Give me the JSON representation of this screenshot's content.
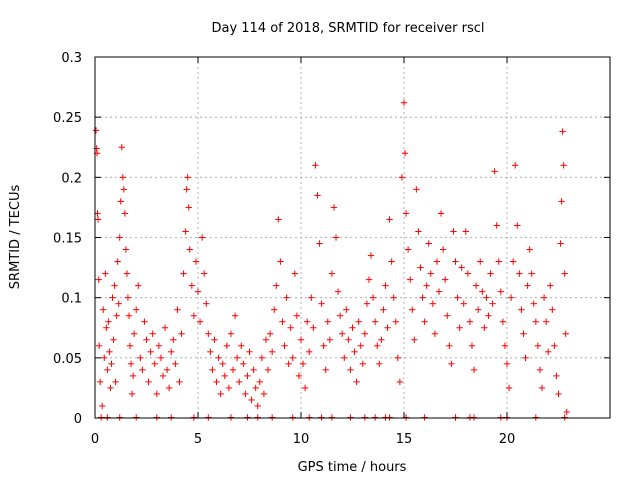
{
  "chart_data": {
    "type": "scatter",
    "title": "Day 114 of 2018, SRMTID for receiver rscl",
    "xlabel": "GPS time / hours",
    "ylabel": "SRMTID / TECUs",
    "xlim": [
      0,
      25
    ],
    "ylim": [
      0,
      0.3
    ],
    "grid": true,
    "marker_color": "#ff0000",
    "marker": "+",
    "x_ticks": [
      {
        "value": 0,
        "label": "0"
      },
      {
        "value": 5,
        "label": "5"
      },
      {
        "value": 10,
        "label": "10"
      },
      {
        "value": 15,
        "label": "15"
      },
      {
        "value": 20,
        "label": "20"
      }
    ],
    "y_ticks": [
      {
        "value": 0,
        "label": "0"
      },
      {
        "value": 0.05,
        "label": "0.05"
      },
      {
        "value": 0.1,
        "label": "0.1"
      },
      {
        "value": 0.15,
        "label": "0.15"
      },
      {
        "value": 0.2,
        "label": "0.2"
      },
      {
        "value": 0.25,
        "label": "0.25"
      },
      {
        "value": 0.3,
        "label": "0.3"
      }
    ],
    "series": [
      {
        "name": "SRMTID",
        "points": [
          [
            0.05,
            0.239
          ],
          [
            0.08,
            0.224
          ],
          [
            0.1,
            0.22
          ],
          [
            0.12,
            0.17
          ],
          [
            0.15,
            0.165
          ],
          [
            0.18,
            0.115
          ],
          [
            0.2,
            0.06
          ],
          [
            0.25,
            0.03
          ],
          [
            0.3,
            0.0
          ],
          [
            0.35,
            0.01
          ],
          [
            0.4,
            0.09
          ],
          [
            0.45,
            0.05
          ],
          [
            0.5,
            0.12
          ],
          [
            0.55,
            0.075
          ],
          [
            0.6,
            0.04
          ],
          [
            0.65,
            0.08
          ],
          [
            0.7,
            0.055
          ],
          [
            0.75,
            0.025
          ],
          [
            0.8,
            0.045
          ],
          [
            0.85,
            0.1
          ],
          [
            0.9,
            0.065
          ],
          [
            0.95,
            0.11
          ],
          [
            1.0,
            0.03
          ],
          [
            1.05,
            0.085
          ],
          [
            1.1,
            0.13
          ],
          [
            1.15,
            0.095
          ],
          [
            1.2,
            0.15
          ],
          [
            1.25,
            0.18
          ],
          [
            1.3,
            0.225
          ],
          [
            1.35,
            0.2
          ],
          [
            1.4,
            0.19
          ],
          [
            1.45,
            0.17
          ],
          [
            1.5,
            0.14
          ],
          [
            1.55,
            0.12
          ],
          [
            1.6,
            0.1
          ],
          [
            1.65,
            0.085
          ],
          [
            1.7,
            0.06
          ],
          [
            1.75,
            0.045
          ],
          [
            1.8,
            0.02
          ],
          [
            1.85,
            0.035
          ],
          [
            1.9,
            0.07
          ],
          [
            2.0,
            0.09
          ],
          [
            2.1,
            0.11
          ],
          [
            2.2,
            0.05
          ],
          [
            2.3,
            0.04
          ],
          [
            2.4,
            0.08
          ],
          [
            2.5,
            0.065
          ],
          [
            2.6,
            0.03
          ],
          [
            2.7,
            0.055
          ],
          [
            2.8,
            0.07
          ],
          [
            2.9,
            0.045
          ],
          [
            3.0,
            0.02
          ],
          [
            3.1,
            0.06
          ],
          [
            3.2,
            0.05
          ],
          [
            3.3,
            0.035
          ],
          [
            3.4,
            0.075
          ],
          [
            3.5,
            0.04
          ],
          [
            3.6,
            0.025
          ],
          [
            3.7,
            0.055
          ],
          [
            3.8,
            0.065
          ],
          [
            3.9,
            0.045
          ],
          [
            4.0,
            0.09
          ],
          [
            4.1,
            0.03
          ],
          [
            4.2,
            0.07
          ],
          [
            4.3,
            0.12
          ],
          [
            4.4,
            0.155
          ],
          [
            4.45,
            0.19
          ],
          [
            4.5,
            0.2
          ],
          [
            4.55,
            0.175
          ],
          [
            4.6,
            0.14
          ],
          [
            4.7,
            0.11
          ],
          [
            4.8,
            0.085
          ],
          [
            4.9,
            0.13
          ],
          [
            5.0,
            0.105
          ],
          [
            5.1,
            0.08
          ],
          [
            5.2,
            0.15
          ],
          [
            5.3,
            0.12
          ],
          [
            5.4,
            0.095
          ],
          [
            5.5,
            0.07
          ],
          [
            5.6,
            0.055
          ],
          [
            5.7,
            0.04
          ],
          [
            5.8,
            0.065
          ],
          [
            5.9,
            0.03
          ],
          [
            6.0,
            0.05
          ],
          [
            6.1,
            0.02
          ],
          [
            6.2,
            0.045
          ],
          [
            6.3,
            0.035
          ],
          [
            6.4,
            0.06
          ],
          [
            6.5,
            0.025
          ],
          [
            6.6,
            0.07
          ],
          [
            6.7,
            0.04
          ],
          [
            6.8,
            0.085
          ],
          [
            6.9,
            0.05
          ],
          [
            7.0,
            0.03
          ],
          [
            7.1,
            0.06
          ],
          [
            7.2,
            0.045
          ],
          [
            7.3,
            0.02
          ],
          [
            7.4,
            0.035
          ],
          [
            7.5,
            0.055
          ],
          [
            7.6,
            0.015
          ],
          [
            7.7,
            0.04
          ],
          [
            7.8,
            0.025
          ],
          [
            7.9,
            0.01
          ],
          [
            8.0,
            0.03
          ],
          [
            8.1,
            0.05
          ],
          [
            8.2,
            0.02
          ],
          [
            8.3,
            0.065
          ],
          [
            8.4,
            0.04
          ],
          [
            8.5,
            0.07
          ],
          [
            8.6,
            0.055
          ],
          [
            8.7,
            0.09
          ],
          [
            8.8,
            0.11
          ],
          [
            8.9,
            0.165
          ],
          [
            9.0,
            0.13
          ],
          [
            9.1,
            0.08
          ],
          [
            9.2,
            0.06
          ],
          [
            9.3,
            0.1
          ],
          [
            9.4,
            0.045
          ],
          [
            9.5,
            0.075
          ],
          [
            9.6,
            0.05
          ],
          [
            9.7,
            0.12
          ],
          [
            9.8,
            0.085
          ],
          [
            9.9,
            0.035
          ],
          [
            10.0,
            0.065
          ],
          [
            10.1,
            0.045
          ],
          [
            10.2,
            0.025
          ],
          [
            10.3,
            0.08
          ],
          [
            10.4,
            0.055
          ],
          [
            10.5,
            0.1
          ],
          [
            10.6,
            0.075
          ],
          [
            10.7,
            0.21
          ],
          [
            10.8,
            0.185
          ],
          [
            10.9,
            0.145
          ],
          [
            11.0,
            0.095
          ],
          [
            11.1,
            0.06
          ],
          [
            11.2,
            0.04
          ],
          [
            11.3,
            0.08
          ],
          [
            11.4,
            0.065
          ],
          [
            11.5,
            0.12
          ],
          [
            11.6,
            0.175
          ],
          [
            11.7,
            0.15
          ],
          [
            11.8,
            0.105
          ],
          [
            11.9,
            0.085
          ],
          [
            12.0,
            0.07
          ],
          [
            12.1,
            0.05
          ],
          [
            12.2,
            0.09
          ],
          [
            12.3,
            0.065
          ],
          [
            12.4,
            0.04
          ],
          [
            12.5,
            0.075
          ],
          [
            12.6,
            0.055
          ],
          [
            12.7,
            0.03
          ],
          [
            12.8,
            0.08
          ],
          [
            12.9,
            0.06
          ],
          [
            13.0,
            0.045
          ],
          [
            13.1,
            0.07
          ],
          [
            13.2,
            0.095
          ],
          [
            13.3,
            0.115
          ],
          [
            13.4,
            0.135
          ],
          [
            13.5,
            0.1
          ],
          [
            13.6,
            0.08
          ],
          [
            13.7,
            0.06
          ],
          [
            13.8,
            0.045
          ],
          [
            13.9,
            0.065
          ],
          [
            14.0,
            0.09
          ],
          [
            14.1,
            0.11
          ],
          [
            14.2,
            0.075
          ],
          [
            14.3,
            0.165
          ],
          [
            14.4,
            0.13
          ],
          [
            14.5,
            0.1
          ],
          [
            14.6,
            0.08
          ],
          [
            14.7,
            0.05
          ],
          [
            14.8,
            0.03
          ],
          [
            14.9,
            0.2
          ],
          [
            15.0,
            0.262
          ],
          [
            15.05,
            0.22
          ],
          [
            15.1,
            0.17
          ],
          [
            15.2,
            0.14
          ],
          [
            15.3,
            0.115
          ],
          [
            15.4,
            0.09
          ],
          [
            15.5,
            0.065
          ],
          [
            15.6,
            0.19
          ],
          [
            15.7,
            0.155
          ],
          [
            15.8,
            0.125
          ],
          [
            15.9,
            0.1
          ],
          [
            16.0,
            0.08
          ],
          [
            16.1,
            0.11
          ],
          [
            16.2,
            0.145
          ],
          [
            16.3,
            0.12
          ],
          [
            16.4,
            0.095
          ],
          [
            16.5,
            0.07
          ],
          [
            16.6,
            0.13
          ],
          [
            16.7,
            0.105
          ],
          [
            16.8,
            0.17
          ],
          [
            16.9,
            0.14
          ],
          [
            17.0,
            0.115
          ],
          [
            17.1,
            0.085
          ],
          [
            17.2,
            0.06
          ],
          [
            17.3,
            0.045
          ],
          [
            17.4,
            0.155
          ],
          [
            17.5,
            0.13
          ],
          [
            17.6,
            0.1
          ],
          [
            17.7,
            0.075
          ],
          [
            17.8,
            0.125
          ],
          [
            17.9,
            0.095
          ],
          [
            18.0,
            0.155
          ],
          [
            18.1,
            0.12
          ],
          [
            18.2,
            0.08
          ],
          [
            18.3,
            0.06
          ],
          [
            18.4,
            0.04
          ],
          [
            18.5,
            0.11
          ],
          [
            18.6,
            0.09
          ],
          [
            18.7,
            0.13
          ],
          [
            18.8,
            0.105
          ],
          [
            18.9,
            0.075
          ],
          [
            19.0,
            0.1
          ],
          [
            19.1,
            0.085
          ],
          [
            19.2,
            0.12
          ],
          [
            19.3,
            0.095
          ],
          [
            19.4,
            0.205
          ],
          [
            19.5,
            0.16
          ],
          [
            19.6,
            0.13
          ],
          [
            19.7,
            0.105
          ],
          [
            19.8,
            0.08
          ],
          [
            19.9,
            0.06
          ],
          [
            20.0,
            0.045
          ],
          [
            20.1,
            0.025
          ],
          [
            20.2,
            0.1
          ],
          [
            20.3,
            0.13
          ],
          [
            20.4,
            0.21
          ],
          [
            20.5,
            0.16
          ],
          [
            20.6,
            0.12
          ],
          [
            20.7,
            0.09
          ],
          [
            20.8,
            0.07
          ],
          [
            20.9,
            0.05
          ],
          [
            21.0,
            0.11
          ],
          [
            21.1,
            0.14
          ],
          [
            21.2,
            0.12
          ],
          [
            21.3,
            0.095
          ],
          [
            21.4,
            0.08
          ],
          [
            21.5,
            0.06
          ],
          [
            21.6,
            0.04
          ],
          [
            21.7,
            0.025
          ],
          [
            21.8,
            0.1
          ],
          [
            21.9,
            0.08
          ],
          [
            22.0,
            0.055
          ],
          [
            22.1,
            0.11
          ],
          [
            22.2,
            0.09
          ],
          [
            22.3,
            0.06
          ],
          [
            22.4,
            0.035
          ],
          [
            22.5,
            0.02
          ],
          [
            22.6,
            0.145
          ],
          [
            22.65,
            0.18
          ],
          [
            22.7,
            0.238
          ],
          [
            22.75,
            0.21
          ],
          [
            22.8,
            0.12
          ],
          [
            22.85,
            0.07
          ],
          [
            22.9,
            0.005
          ],
          [
            0.6,
            0.0
          ],
          [
            1.2,
            0.0
          ],
          [
            2.0,
            0.0
          ],
          [
            3.0,
            0.0
          ],
          [
            3.7,
            0.0
          ],
          [
            4.8,
            0.0
          ],
          [
            5.5,
            0.0
          ],
          [
            6.6,
            0.0
          ],
          [
            7.4,
            0.0
          ],
          [
            7.9,
            0.0
          ],
          [
            8.6,
            0.0
          ],
          [
            9.6,
            0.0
          ],
          [
            10.4,
            0.0
          ],
          [
            11.0,
            0.0
          ],
          [
            11.5,
            0.0
          ],
          [
            12.4,
            0.0
          ],
          [
            13.1,
            0.0
          ],
          [
            13.6,
            0.0
          ],
          [
            14.1,
            0.0
          ],
          [
            14.3,
            0.0
          ],
          [
            15.1,
            0.0
          ],
          [
            16.0,
            0.0
          ],
          [
            17.5,
            0.0
          ],
          [
            18.2,
            0.0
          ],
          [
            18.4,
            0.0
          ],
          [
            19.7,
            0.0
          ],
          [
            20.0,
            0.0
          ],
          [
            21.4,
            0.0
          ],
          [
            22.8,
            0.0
          ]
        ]
      }
    ]
  }
}
